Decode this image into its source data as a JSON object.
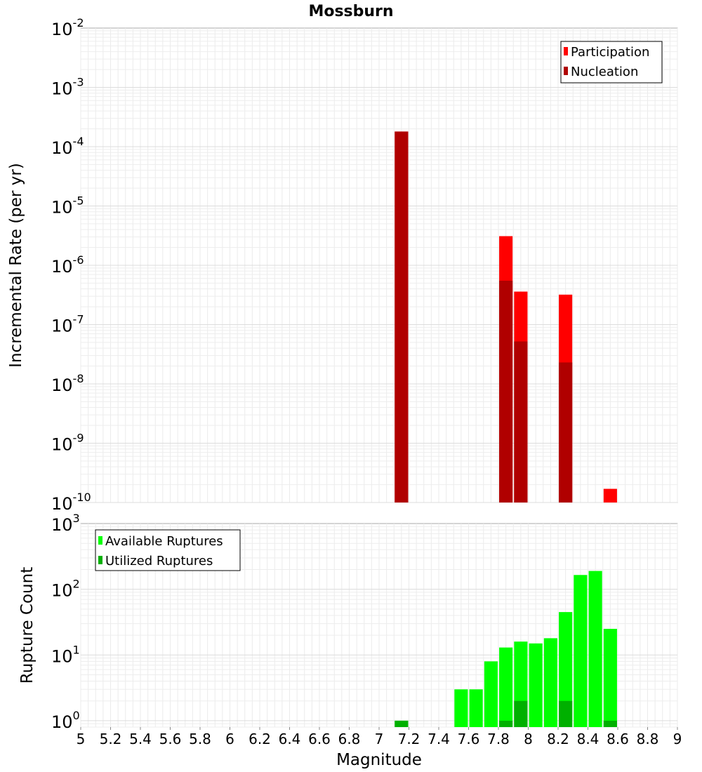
{
  "chart_data": [
    {
      "type": "bar",
      "title": "Mossburn",
      "xlabel": "",
      "ylabel": "Incremental Rate (per yr)",
      "yscale": "log",
      "ylim": [
        1e-10,
        0.01
      ],
      "xlim": [
        5,
        9
      ],
      "y_tick_labels": [
        {
          "base": "10",
          "exp": "-10"
        },
        {
          "base": "10",
          "exp": "-9"
        },
        {
          "base": "10",
          "exp": "-8"
        },
        {
          "base": "10",
          "exp": "-7"
        },
        {
          "base": "10",
          "exp": "-6"
        },
        {
          "base": "10",
          "exp": "-5"
        },
        {
          "base": "10",
          "exp": "-4"
        },
        {
          "base": "10",
          "exp": "-3"
        },
        {
          "base": "10",
          "exp": "-2"
        }
      ],
      "legend": "top-right",
      "grid": true,
      "series": [
        {
          "name": "Participation",
          "color": "#ff0000",
          "points": [
            {
              "x": 7.15,
              "y": 0.00018
            },
            {
              "x": 7.85,
              "y": 3.1e-06
            },
            {
              "x": 7.95,
              "y": 3.6e-07
            },
            {
              "x": 8.25,
              "y": 3.2e-07
            },
            {
              "x": 8.55,
              "y": 1.7e-10
            }
          ]
        },
        {
          "name": "Nucleation",
          "color": "#b00000",
          "points": [
            {
              "x": 7.15,
              "y": 0.00018
            },
            {
              "x": 7.85,
              "y": 5.5e-07
            },
            {
              "x": 7.95,
              "y": 5.2e-08
            },
            {
              "x": 8.25,
              "y": 2.3e-08
            }
          ]
        }
      ]
    },
    {
      "type": "bar",
      "title": "",
      "xlabel": "Magnitude",
      "ylabel": "Rupture Count",
      "yscale": "log",
      "ylim": [
        0.8,
        1000
      ],
      "xlim": [
        5,
        9
      ],
      "x_ticks": [
        "5",
        "5.2",
        "5.4",
        "5.6",
        "5.8",
        "6",
        "6.2",
        "6.4",
        "6.6",
        "6.8",
        "7",
        "7.2",
        "7.4",
        "7.6",
        "7.8",
        "8",
        "8.2",
        "8.4",
        "8.6",
        "8.8",
        "9"
      ],
      "y_tick_labels": [
        {
          "base": "10",
          "exp": "0"
        },
        {
          "base": "10",
          "exp": "1"
        },
        {
          "base": "10",
          "exp": "2"
        },
        {
          "base": "10",
          "exp": "3"
        }
      ],
      "legend": "top-left",
      "grid": true,
      "series": [
        {
          "name": "Available Ruptures",
          "color": "#00ff00",
          "points": [
            {
              "x": 7.15,
              "y": 1
            },
            {
              "x": 7.55,
              "y": 3
            },
            {
              "x": 7.65,
              "y": 3
            },
            {
              "x": 7.75,
              "y": 8
            },
            {
              "x": 7.85,
              "y": 13
            },
            {
              "x": 7.95,
              "y": 16
            },
            {
              "x": 8.05,
              "y": 15
            },
            {
              "x": 8.15,
              "y": 18
            },
            {
              "x": 8.25,
              "y": 45
            },
            {
              "x": 8.35,
              "y": 165
            },
            {
              "x": 8.45,
              "y": 190
            },
            {
              "x": 8.55,
              "y": 25
            }
          ]
        },
        {
          "name": "Utilized Ruptures",
          "color": "#00b000",
          "points": [
            {
              "x": 7.15,
              "y": 1
            },
            {
              "x": 7.85,
              "y": 1
            },
            {
              "x": 7.95,
              "y": 2
            },
            {
              "x": 8.25,
              "y": 2
            },
            {
              "x": 8.55,
              "y": 1
            }
          ]
        }
      ]
    }
  ]
}
